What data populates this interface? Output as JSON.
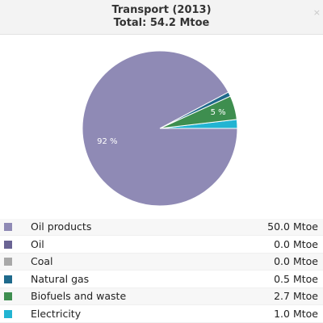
{
  "header": {
    "title": "Transport (2013)",
    "subtitle": "Total: 54.2 Mtoe",
    "close_glyph": "×"
  },
  "chart_data": {
    "type": "pie",
    "categories": [
      "Oil products",
      "Oil",
      "Coal",
      "Natural gas",
      "Biofuels and waste",
      "Electricity"
    ],
    "values": [
      50.0,
      0.0,
      0.0,
      0.5,
      2.7,
      1.0
    ],
    "unit": "Mtoe",
    "value_labels": [
      "50.0 Mtoe",
      "0.0 Mtoe",
      "0.0 Mtoe",
      "0.5 Mtoe",
      "2.7 Mtoe",
      "1.0 Mtoe"
    ],
    "colors": [
      "#8f8ab5",
      "#6a6494",
      "#a8a8a8",
      "#1f6a8c",
      "#3e8e4f",
      "#22b4d2"
    ],
    "slice_labels": [
      {
        "category": "Oil products",
        "text": "92 %"
      },
      {
        "category": "Biofuels and waste",
        "text": "5 %"
      }
    ]
  }
}
